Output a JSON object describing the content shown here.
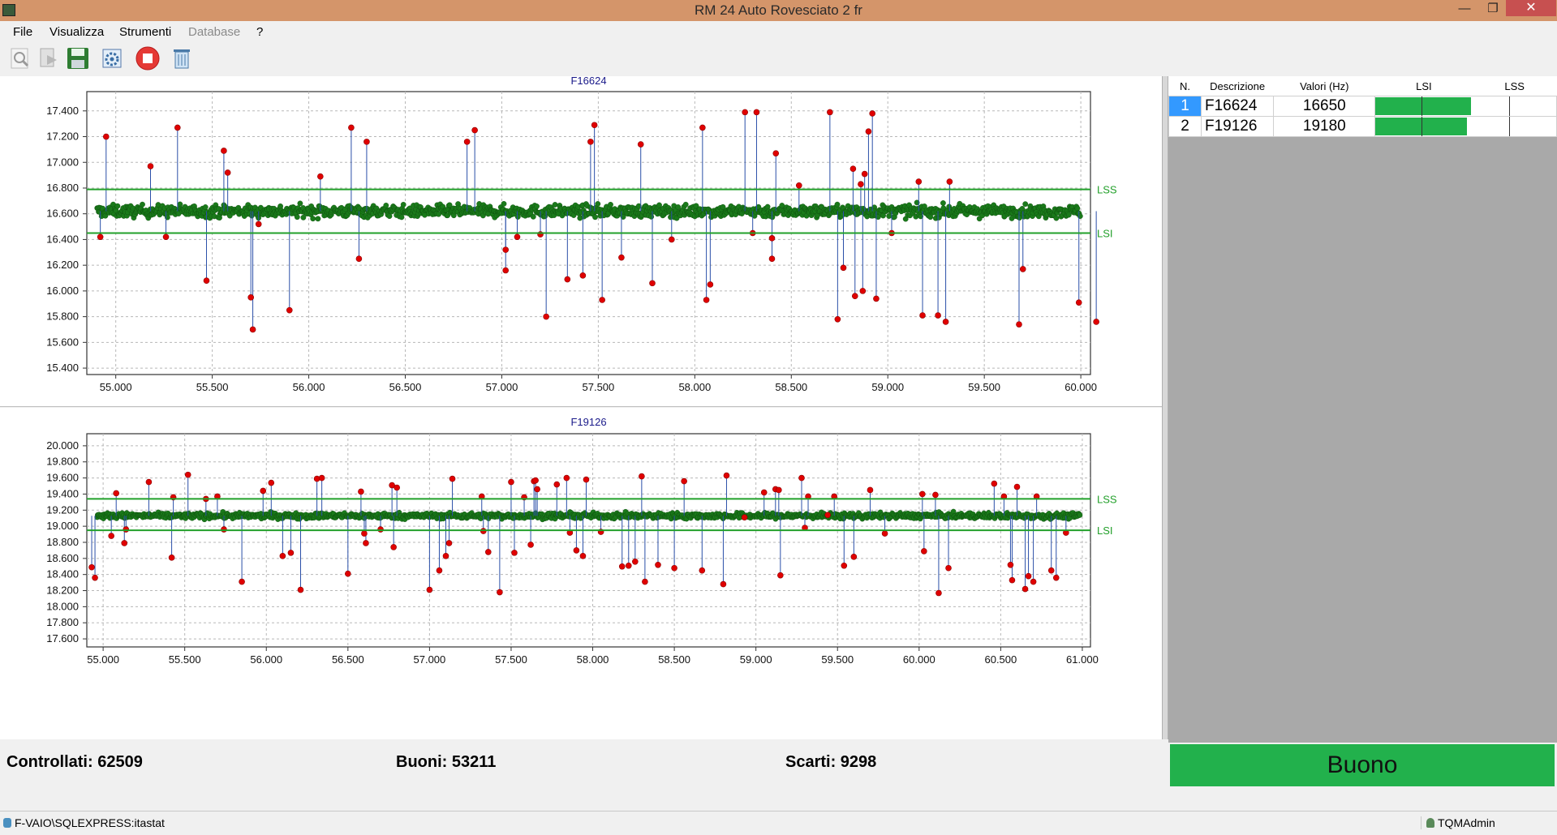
{
  "window": {
    "title": "RM 24 Auto Rovesciato 2 fr",
    "minimize_glyph": "—",
    "maximize_glyph": "❐",
    "close_glyph": "✕"
  },
  "menu": {
    "items": [
      {
        "label": "File",
        "enabled": true
      },
      {
        "label": "Visualizza",
        "enabled": true
      },
      {
        "label": "Strumenti",
        "enabled": true
      },
      {
        "label": "Database",
        "enabled": false
      },
      {
        "label": "?",
        "enabled": true
      }
    ]
  },
  "toolbar": {
    "icons": [
      "magnifier-icon",
      "document-arrow-icon",
      "save-disk-icon",
      "settings-report-icon",
      "stop-record-icon",
      "recycle-bin-icon"
    ]
  },
  "colors": {
    "limit_line": "#22a02a",
    "good_point": "#1a7a1a",
    "bad_point": "#e00000",
    "spike_line": "#2a4fa8",
    "title_text": "#1a1a8a",
    "limit_label": "#22a02a",
    "result_badge": "#22b14c",
    "selected_row": "#3399ff"
  },
  "table": {
    "headers": {
      "n": "N.",
      "descrizione": "Descrizione",
      "valori": "Valori (Hz)",
      "lsi": "LSI",
      "lss": "LSS"
    },
    "rows": [
      {
        "n": "1",
        "descrizione": "F16624",
        "valore": "16650",
        "bar_fraction": 0.55,
        "selected": true
      },
      {
        "n": "2",
        "descrizione": "F19126",
        "valore": "19180",
        "bar_fraction": 0.53,
        "selected": false
      }
    ]
  },
  "stats": {
    "controllati": "Controllati: 62509",
    "buoni": "Buoni: 53211",
    "scarti": "Scarti: 9298"
  },
  "result": "Buono",
  "statusbar": {
    "database": "F-VAIO\\SQLEXPRESS:itastat",
    "user": "TQMAdmin"
  },
  "chart_data": [
    {
      "type": "scatter",
      "title": "F16624",
      "lsi_label": "LSI",
      "lss_label": "LSS",
      "lsi": 16450,
      "lss": 16790,
      "center": 16620,
      "spread": 60,
      "xlim": [
        54850,
        60050
      ],
      "ylim": [
        15350,
        17550
      ],
      "x_ticks": [
        55000,
        55500,
        56000,
        56500,
        57000,
        57500,
        58000,
        58500,
        59000,
        59500,
        60000
      ],
      "x_tick_labels": [
        "55.000",
        "55.500",
        "56.000",
        "56.500",
        "57.000",
        "57.500",
        "58.000",
        "58.500",
        "59.000",
        "59.500",
        "60.000"
      ],
      "y_ticks": [
        15400,
        15600,
        15800,
        16000,
        16200,
        16400,
        16600,
        16800,
        17000,
        17200,
        17400
      ],
      "y_tick_labels": [
        "15.400",
        "15.600",
        "15.800",
        "16.000",
        "16.200",
        "16.400",
        "16.600",
        "16.800",
        "17.000",
        "17.200",
        "17.400"
      ],
      "outliers": [
        [
          54920,
          16420
        ],
        [
          54950,
          17200
        ],
        [
          55180,
          16970
        ],
        [
          55260,
          16420
        ],
        [
          55320,
          17270
        ],
        [
          55470,
          16080
        ],
        [
          55560,
          17090
        ],
        [
          55580,
          16920
        ],
        [
          55700,
          15950
        ],
        [
          55710,
          15700
        ],
        [
          55740,
          16520
        ],
        [
          55900,
          15850
        ],
        [
          56060,
          16890
        ],
        [
          56220,
          17270
        ],
        [
          56260,
          16250
        ],
        [
          56300,
          17160
        ],
        [
          56820,
          17160
        ],
        [
          56860,
          17250
        ],
        [
          57020,
          16320
        ],
        [
          57020,
          16160
        ],
        [
          57080,
          16420
        ],
        [
          57200,
          16440
        ],
        [
          57230,
          15800
        ],
        [
          57340,
          16090
        ],
        [
          57420,
          16120
        ],
        [
          57460,
          17160
        ],
        [
          57480,
          17290
        ],
        [
          57520,
          15930
        ],
        [
          57620,
          16260
        ],
        [
          57720,
          17140
        ],
        [
          57780,
          16060
        ],
        [
          57880,
          16400
        ],
        [
          58040,
          17270
        ],
        [
          58060,
          15930
        ],
        [
          58080,
          16050
        ],
        [
          58260,
          17390
        ],
        [
          58300,
          16450
        ],
        [
          58320,
          17390
        ],
        [
          58400,
          16250
        ],
        [
          58400,
          16410
        ],
        [
          58420,
          17070
        ],
        [
          58540,
          16820
        ],
        [
          58700,
          17390
        ],
        [
          58740,
          15780
        ],
        [
          58770,
          16180
        ],
        [
          58820,
          16950
        ],
        [
          58830,
          15960
        ],
        [
          58860,
          16830
        ],
        [
          58870,
          16000
        ],
        [
          58880,
          16910
        ],
        [
          58900,
          17240
        ],
        [
          58920,
          17380
        ],
        [
          58940,
          15940
        ],
        [
          59020,
          16450
        ],
        [
          59160,
          16850
        ],
        [
          59180,
          15810
        ],
        [
          59260,
          15810
        ],
        [
          59300,
          15760
        ],
        [
          59320,
          16850
        ],
        [
          59680,
          15740
        ],
        [
          59700,
          16170
        ],
        [
          59990,
          15910
        ],
        [
          60080,
          15760
        ]
      ]
    },
    {
      "type": "scatter",
      "title": "F19126",
      "lsi_label": "LSI",
      "lss_label": "LSS",
      "lsi": 18950,
      "lss": 19340,
      "center": 19130,
      "spread": 45,
      "xlim": [
        54900,
        61050
      ],
      "ylim": [
        17500,
        20150
      ],
      "x_ticks": [
        55000,
        55500,
        56000,
        56500,
        57000,
        57500,
        58000,
        58500,
        59000,
        59500,
        60000,
        60500,
        61000
      ],
      "x_tick_labels": [
        "55.000",
        "55.500",
        "56.000",
        "56.500",
        "57.000",
        "57.500",
        "58.000",
        "58.500",
        "59.000",
        "59.500",
        "60.000",
        "60.500",
        "61.000"
      ],
      "y_ticks": [
        17600,
        17800,
        18000,
        18200,
        18400,
        18600,
        18800,
        19000,
        19200,
        19400,
        19600,
        19800,
        20000
      ],
      "y_tick_labels": [
        "17.600",
        "17.800",
        "18.000",
        "18.200",
        "18.400",
        "18.600",
        "18.800",
        "19.000",
        "19.200",
        "19.400",
        "19.600",
        "19.800",
        "20.000"
      ],
      "outliers": [
        [
          54930,
          18490
        ],
        [
          54950,
          18360
        ],
        [
          55050,
          18880
        ],
        [
          55080,
          19410
        ],
        [
          55130,
          18790
        ],
        [
          55140,
          18960
        ],
        [
          55280,
          19550
        ],
        [
          55420,
          18610
        ],
        [
          55430,
          19360
        ],
        [
          55520,
          19640
        ],
        [
          55630,
          19340
        ],
        [
          55700,
          19370
        ],
        [
          55740,
          18960
        ],
        [
          55850,
          18310
        ],
        [
          55980,
          19440
        ],
        [
          56030,
          19540
        ],
        [
          56100,
          18630
        ],
        [
          56150,
          18670
        ],
        [
          56210,
          18210
        ],
        [
          56310,
          19590
        ],
        [
          56340,
          19600
        ],
        [
          56500,
          18410
        ],
        [
          56580,
          19430
        ],
        [
          56600,
          18910
        ],
        [
          56610,
          18790
        ],
        [
          56700,
          18960
        ],
        [
          56770,
          19510
        ],
        [
          56780,
          18740
        ],
        [
          56800,
          19480
        ],
        [
          57000,
          18210
        ],
        [
          57060,
          18450
        ],
        [
          57100,
          18630
        ],
        [
          57120,
          18790
        ],
        [
          57140,
          19590
        ],
        [
          57320,
          19370
        ],
        [
          57330,
          18940
        ],
        [
          57360,
          18680
        ],
        [
          57430,
          18180
        ],
        [
          57500,
          19550
        ],
        [
          57520,
          18670
        ],
        [
          57580,
          19360
        ],
        [
          57620,
          18770
        ],
        [
          57640,
          19560
        ],
        [
          57650,
          19570
        ],
        [
          57660,
          19460
        ],
        [
          57780,
          19520
        ],
        [
          57840,
          19600
        ],
        [
          57860,
          18920
        ],
        [
          57900,
          18700
        ],
        [
          57940,
          18630
        ],
        [
          57960,
          19580
        ],
        [
          58050,
          18930
        ],
        [
          58180,
          18500
        ],
        [
          58220,
          18510
        ],
        [
          58260,
          18560
        ],
        [
          58300,
          19620
        ],
        [
          58320,
          18310
        ],
        [
          58400,
          18520
        ],
        [
          58500,
          18480
        ],
        [
          58560,
          19560
        ],
        [
          58670,
          18450
        ],
        [
          58800,
          18280
        ],
        [
          58820,
          19630
        ],
        [
          58930,
          19110
        ],
        [
          59050,
          19420
        ],
        [
          59120,
          19460
        ],
        [
          59140,
          19450
        ],
        [
          59150,
          18390
        ],
        [
          59280,
          19600
        ],
        [
          59300,
          18980
        ],
        [
          59320,
          19370
        ],
        [
          59440,
          19140
        ],
        [
          59480,
          19370
        ],
        [
          59540,
          18510
        ],
        [
          59600,
          18620
        ],
        [
          59700,
          19450
        ],
        [
          59790,
          18910
        ],
        [
          60020,
          19400
        ],
        [
          60030,
          18690
        ],
        [
          60100,
          19390
        ],
        [
          60120,
          18170
        ],
        [
          60180,
          18480
        ],
        [
          60460,
          19530
        ],
        [
          60520,
          19370
        ],
        [
          60560,
          18520
        ],
        [
          60570,
          18330
        ],
        [
          60600,
          19490
        ],
        [
          60650,
          18220
        ],
        [
          60670,
          18380
        ],
        [
          60700,
          18310
        ],
        [
          60720,
          19370
        ],
        [
          60810,
          18450
        ],
        [
          60840,
          18360
        ],
        [
          60900,
          18920
        ]
      ]
    }
  ]
}
